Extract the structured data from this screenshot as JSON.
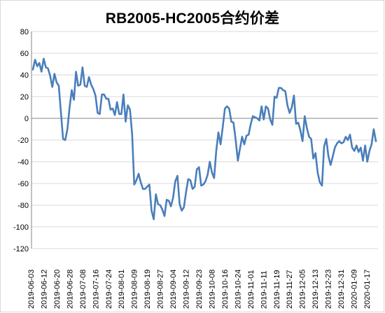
{
  "chart_data": {
    "type": "line",
    "title": "RB2005-HC2005合约价差",
    "xlabel": "",
    "ylabel": "",
    "ylim": [
      -120,
      80
    ],
    "yticks": [
      80,
      60,
      40,
      20,
      0,
      -20,
      -40,
      -60,
      -80,
      -100,
      -120
    ],
    "grid": true,
    "legend": "none",
    "line_color": "#4a7ebb",
    "x_tick_labels": [
      "2019-06-03",
      "2019-06-12",
      "2019-06-20",
      "2019-06-28",
      "2019-07-08",
      "2019-07-16",
      "2019-07-24",
      "2019-08-01",
      "2019-08-09",
      "2019-08-19",
      "2019-08-27",
      "2019-09-04",
      "2019-09-12",
      "2019-09-23",
      "2019-10-08",
      "2019-10-16",
      "2019-10-24",
      "2019-11-01",
      "2019-11-11",
      "2019-11-19",
      "2019-11-27",
      "2019-12-05",
      "2019-12-13",
      "2019-12-23",
      "2019-12-31",
      "2020-01-09",
      "2020-01-17"
    ],
    "series": [
      {
        "values": [
          45,
          54,
          48,
          51,
          43,
          55,
          47,
          46,
          39,
          29,
          41,
          33,
          30,
          5,
          -19,
          -20,
          -10,
          10,
          26,
          17,
          43,
          30,
          31,
          47,
          30,
          29,
          38,
          31,
          27,
          21,
          5,
          4,
          22,
          22,
          18,
          18,
          8,
          9,
          3,
          15,
          4,
          4,
          22,
          -3,
          12,
          8,
          -15,
          -61,
          -57,
          -51,
          -59,
          -65,
          -65,
          -63,
          -61,
          -85,
          -93,
          -70,
          -79,
          -80,
          -84,
          -90,
          -75,
          -76,
          -81,
          -73,
          -58,
          -53,
          -79,
          -85,
          -82,
          -68,
          -56,
          -57,
          -65,
          -63,
          -47,
          -45,
          -62,
          -61,
          -58,
          -52,
          -40,
          -50,
          -55,
          -30,
          -13,
          -24,
          -8,
          9,
          11,
          9,
          -3,
          -4,
          -20,
          -39,
          -28,
          -17,
          -24,
          -16,
          -15,
          -5,
          2,
          1,
          0,
          -2,
          11,
          -1,
          11,
          9,
          -1,
          -6,
          20,
          19,
          28,
          28,
          26,
          25,
          12,
          5,
          10,
          21,
          -5,
          -4,
          -11,
          -21,
          2,
          -9,
          -17,
          -19,
          -37,
          -32,
          -50,
          -59,
          -62,
          -26,
          -19,
          -35,
          -43,
          -35,
          -27,
          -23,
          -21,
          -23,
          -22,
          -17,
          -20,
          -15,
          -27,
          -30,
          -25,
          -31,
          -27,
          -39,
          -25,
          -40,
          -30,
          -24,
          -10,
          -21
        ]
      }
    ]
  }
}
